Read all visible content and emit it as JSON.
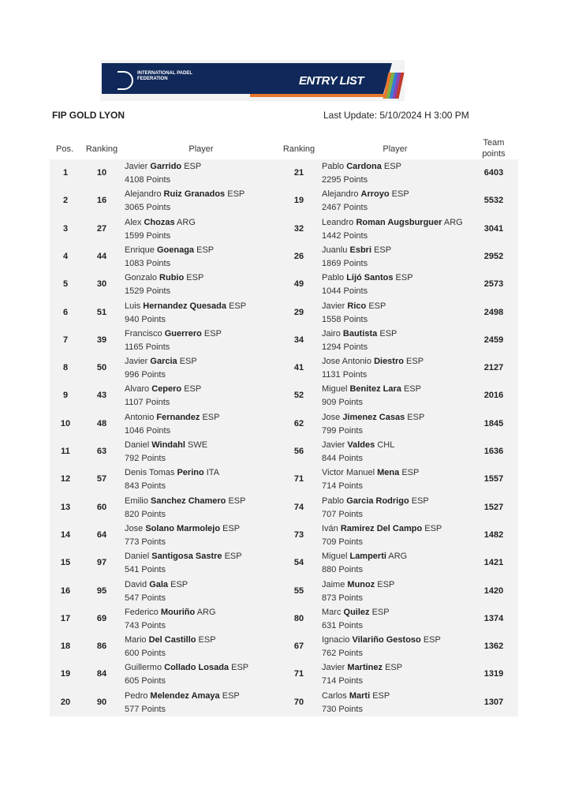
{
  "header": {
    "logo_text": "INTERNATIONAL PADEL FEDERATION",
    "banner_title": "ENTRY LIST",
    "tournament": "FIP GOLD LYON",
    "last_update": "Last Update: 5/10/2024 H 3:00 PM"
  },
  "columns": {
    "pos": "Pos.",
    "ranking1": "Ranking",
    "player1": "Player",
    "ranking2": "Ranking",
    "player2": "Player",
    "team_points": "Team points"
  },
  "rows": [
    {
      "pos": "1",
      "r1": "10",
      "p1": {
        "first": "Javier",
        "last": "Garrido",
        "nat": "ESP",
        "points": "4108 Points"
      },
      "r2": "21",
      "p2": {
        "first": "Pablo",
        "last": "Cardona",
        "nat": "ESP",
        "points": "2295 Points"
      },
      "team": "6403"
    },
    {
      "pos": "2",
      "r1": "16",
      "p1": {
        "first": "Alejandro",
        "last": "Ruiz Granados",
        "nat": "ESP",
        "points": "3065 Points"
      },
      "r2": "19",
      "p2": {
        "first": "Alejandro",
        "last": "Arroyo",
        "nat": "ESP",
        "points": "2467 Points"
      },
      "team": "5532"
    },
    {
      "pos": "3",
      "r1": "27",
      "p1": {
        "first": "Alex",
        "last": "Chozas",
        "nat": "ARG",
        "points": "1599 Points"
      },
      "r2": "32",
      "p2": {
        "first": "Leandro",
        "last": "Roman Augsburguer",
        "nat": "ARG",
        "points": "1442 Points"
      },
      "team": "3041"
    },
    {
      "pos": "4",
      "r1": "44",
      "p1": {
        "first": "Enrique",
        "last": "Goenaga",
        "nat": "ESP",
        "points": "1083 Points"
      },
      "r2": "26",
      "p2": {
        "first": "Juanlu",
        "last": "Esbri",
        "nat": "ESP",
        "points": "1869 Points"
      },
      "team": "2952"
    },
    {
      "pos": "5",
      "r1": "30",
      "p1": {
        "first": "Gonzalo",
        "last": "Rubio",
        "nat": "ESP",
        "points": "1529 Points"
      },
      "r2": "49",
      "p2": {
        "first": "Pablo",
        "last": "Lijó Santos",
        "nat": "ESP",
        "points": "1044 Points"
      },
      "team": "2573"
    },
    {
      "pos": "6",
      "r1": "51",
      "p1": {
        "first": "Luis",
        "last": "Hernandez Quesada",
        "nat": "ESP",
        "points": "940 Points"
      },
      "r2": "29",
      "p2": {
        "first": "Javier",
        "last": "Rico",
        "nat": "ESP",
        "points": "1558 Points"
      },
      "team": "2498"
    },
    {
      "pos": "7",
      "r1": "39",
      "p1": {
        "first": "Francisco",
        "last": "Guerrero",
        "nat": "ESP",
        "points": "1165 Points"
      },
      "r2": "34",
      "p2": {
        "first": "Jairo",
        "last": "Bautista",
        "nat": "ESP",
        "points": "1294 Points"
      },
      "team": "2459"
    },
    {
      "pos": "8",
      "r1": "50",
      "p1": {
        "first": "Javier",
        "last": "Garcia",
        "nat": "ESP",
        "points": "996 Points"
      },
      "r2": "41",
      "p2": {
        "first": "Jose Antonio",
        "last": "Diestro",
        "nat": "ESP",
        "points": "1131 Points"
      },
      "team": "2127"
    },
    {
      "pos": "9",
      "r1": "43",
      "p1": {
        "first": "Alvaro",
        "last": "Cepero",
        "nat": "ESP",
        "points": "1107 Points"
      },
      "r2": "52",
      "p2": {
        "first": "Miguel",
        "last": "Benitez Lara",
        "nat": "ESP",
        "points": "909 Points"
      },
      "team": "2016"
    },
    {
      "pos": "10",
      "r1": "48",
      "p1": {
        "first": "Antonio",
        "last": "Fernandez",
        "nat": "ESP",
        "points": "1046 Points"
      },
      "r2": "62",
      "p2": {
        "first": "Jose",
        "last": "Jimenez Casas",
        "nat": "ESP",
        "points": "799 Points"
      },
      "team": "1845"
    },
    {
      "pos": "11",
      "r1": "63",
      "p1": {
        "first": "Daniel",
        "last": "Windahl",
        "nat": "SWE",
        "points": "792 Points"
      },
      "r2": "56",
      "p2": {
        "first": "Javier",
        "last": "Valdes",
        "nat": "CHL",
        "points": "844 Points"
      },
      "team": "1636"
    },
    {
      "pos": "12",
      "r1": "57",
      "p1": {
        "first": "Denis Tomas",
        "last": "Perino",
        "nat": "ITA",
        "points": "843 Points"
      },
      "r2": "71",
      "p2": {
        "first": "Victor Manuel",
        "last": "Mena",
        "nat": "ESP",
        "points": "714 Points"
      },
      "team": "1557"
    },
    {
      "pos": "13",
      "r1": "60",
      "p1": {
        "first": "Emilio",
        "last": "Sanchez Chamero",
        "nat": "ESP",
        "points": "820 Points"
      },
      "r2": "74",
      "p2": {
        "first": "Pablo",
        "last": "Garcia Rodrigo",
        "nat": "ESP",
        "points": "707 Points"
      },
      "team": "1527"
    },
    {
      "pos": "14",
      "r1": "64",
      "p1": {
        "first": "Jose",
        "last": "Solano Marmolejo",
        "nat": "ESP",
        "points": "773 Points"
      },
      "r2": "73",
      "p2": {
        "first": "Iván",
        "last": "Ramirez Del Campo",
        "nat": "ESP",
        "points": "709 Points"
      },
      "team": "1482"
    },
    {
      "pos": "15",
      "r1": "97",
      "p1": {
        "first": "Daniel",
        "last": "Santigosa Sastre",
        "nat": "ESP",
        "points": "541 Points"
      },
      "r2": "54",
      "p2": {
        "first": "Miguel",
        "last": "Lamperti",
        "nat": "ARG",
        "points": "880 Points"
      },
      "team": "1421"
    },
    {
      "pos": "16",
      "r1": "95",
      "p1": {
        "first": "David",
        "last": "Gala",
        "nat": "ESP",
        "points": "547 Points"
      },
      "r2": "55",
      "p2": {
        "first": "Jaime",
        "last": "Munoz",
        "nat": "ESP",
        "points": "873 Points"
      },
      "team": "1420"
    },
    {
      "pos": "17",
      "r1": "69",
      "p1": {
        "first": "Federico",
        "last": "Mouriño",
        "nat": "ARG",
        "points": "743 Points"
      },
      "r2": "80",
      "p2": {
        "first": "Marc",
        "last": "Quilez",
        "nat": "ESP",
        "points": "631 Points"
      },
      "team": "1374"
    },
    {
      "pos": "18",
      "r1": "86",
      "p1": {
        "first": "Mario",
        "last": "Del Castillo",
        "nat": "ESP",
        "points": "600 Points"
      },
      "r2": "67",
      "p2": {
        "first": "Ignacio",
        "last": "Vilariño Gestoso",
        "nat": "ESP",
        "points": "762 Points"
      },
      "team": "1362"
    },
    {
      "pos": "19",
      "r1": "84",
      "p1": {
        "first": "Guillermo",
        "last": "Collado Losada",
        "nat": "ESP",
        "points": "605 Points"
      },
      "r2": "71",
      "p2": {
        "first": "Javier",
        "last": "Martinez",
        "nat": "ESP",
        "points": "714 Points"
      },
      "team": "1319"
    },
    {
      "pos": "20",
      "r1": "90",
      "p1": {
        "first": "Pedro",
        "last": "Melendez Amaya",
        "nat": "ESP",
        "points": "577 Points"
      },
      "r2": "70",
      "p2": {
        "first": "Carlos",
        "last": "Marti",
        "nat": "ESP",
        "points": "730 Points"
      },
      "team": "1307"
    }
  ]
}
